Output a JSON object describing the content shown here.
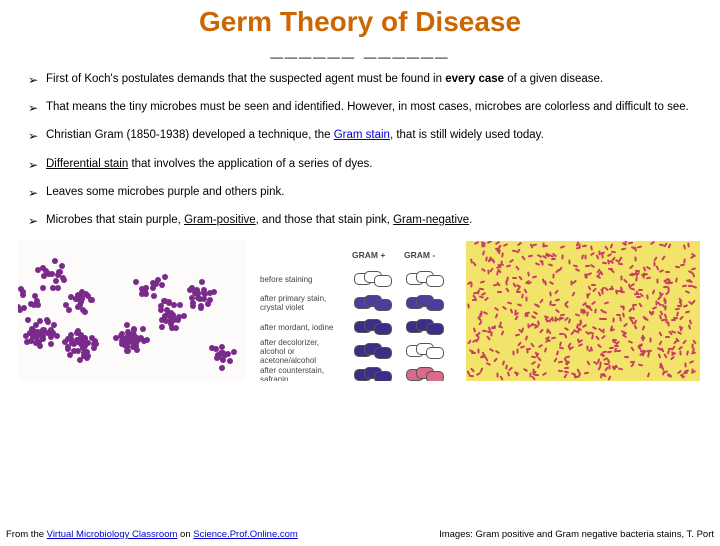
{
  "title": {
    "text": "Germ Theory of Disease",
    "color": "#cc6600",
    "font_size": 28
  },
  "subtitle": {
    "text": "______ ______",
    "color": "#000000",
    "font_size": 22
  },
  "bullets": [
    {
      "pre": "First of Koch's postulates demands that the suspected agent must be found in ",
      "bold": "every case",
      "post": " of a given disease."
    },
    {
      "text": "That means the tiny microbes must be seen and identified. However, in most cases, microbes are colorless and difficult to see."
    },
    {
      "pre": "Christian Gram (1850-1938) developed a technique, the ",
      "link": "Gram stain",
      "post": ", that is still widely used today."
    },
    {
      "ul": "Differential stain",
      "post": " that involves the application of a series of dyes."
    },
    {
      "text": "Leaves some microbes purple and others pink."
    },
    {
      "pre": "Microbes that stain purple, ",
      "ul1": "Gram-positive",
      "mid": ", and those that stain pink, ",
      "ul2": "Gram-negative",
      "post": "."
    }
  ],
  "mid_diagram": {
    "header_pos": "GRAM +",
    "header_neg": "GRAM -",
    "rows": [
      {
        "label": "before staining",
        "pos_fill": "#ffffff",
        "neg_fill": "#ffffff"
      },
      {
        "label": "after primary stain, crystal violet",
        "pos_fill": "#4a3da0",
        "neg_fill": "#4a3da0"
      },
      {
        "label": "after mordant, iodine",
        "pos_fill": "#3a2e88",
        "neg_fill": "#3a2e88"
      },
      {
        "label": "after decolorizer, alcohol or acetone/alcohol",
        "pos_fill": "#3a2e88",
        "neg_fill": "#ffffff"
      },
      {
        "label": "after counterstain, safranin",
        "pos_fill": "#3a2e88",
        "neg_fill": "#d86b8a"
      }
    ]
  },
  "left_image": {
    "bg": "#fdfbfa",
    "cocci_color": "#7a2a8a"
  },
  "right_image": {
    "bg": "#f2e36b",
    "rod_color": "#c84060"
  },
  "footer": {
    "left_pre": "From the ",
    "left_link1": "Virtual Microbiology Classroom",
    "left_mid": " on ",
    "left_link2": "Science.Prof.Online.com",
    "right": "Images: Gram positive and Gram negative bacteria stains, T. Port"
  },
  "colors": {
    "title": "#cc6600",
    "text": "#000000",
    "link": "#0000cc"
  }
}
